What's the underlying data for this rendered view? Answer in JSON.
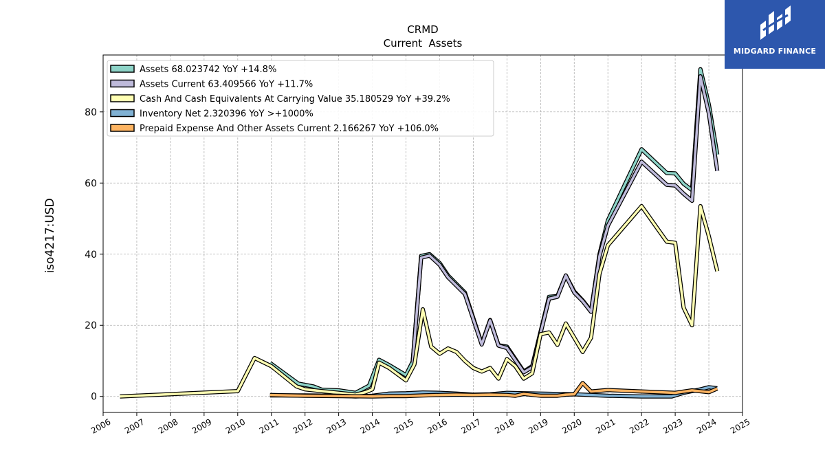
{
  "chart_data": {
    "type": "line",
    "title": "CRMD",
    "subtitle": "Current  Assets",
    "ylabel": "iso4217:USD",
    "xlabel": "",
    "xlim": [
      2006.0,
      2025.0
    ],
    "ylim": [
      -4.5,
      96.0
    ],
    "x_ticks": [
      2006,
      2007,
      2008,
      2009,
      2010,
      2011,
      2012,
      2013,
      2014,
      2015,
      2016,
      2017,
      2018,
      2019,
      2020,
      2021,
      2022,
      2023,
      2024,
      2025
    ],
    "y_ticks": [
      0,
      20,
      40,
      60,
      80
    ],
    "grid": true,
    "legend_position": "top-left",
    "series": [
      {
        "name": "Assets  68.023742 YoY +14.8%",
        "color": "#8dd3c7",
        "points": [
          [
            2010.96,
            9.4
          ],
          [
            2011.8,
            3.6
          ],
          [
            2012.25,
            2.8
          ],
          [
            2012.5,
            1.9
          ],
          [
            2013.0,
            1.7
          ],
          [
            2013.5,
            1.0
          ],
          [
            2013.9,
            3.0
          ],
          [
            2014.2,
            10.3
          ],
          [
            2014.5,
            8.8
          ],
          [
            2015.0,
            6.0
          ],
          [
            2015.2,
            9.8
          ],
          [
            2015.45,
            39.5
          ],
          [
            2015.7,
            40.0
          ],
          [
            2016.0,
            37.5
          ],
          [
            2016.25,
            34.0
          ],
          [
            2016.75,
            29.2
          ],
          [
            2017.25,
            14.8
          ],
          [
            2017.5,
            21.5
          ],
          [
            2017.75,
            14.4
          ],
          [
            2018.0,
            14.0
          ],
          [
            2018.5,
            7.0
          ],
          [
            2018.75,
            8.5
          ],
          [
            2019.25,
            28.0
          ],
          [
            2019.5,
            28.2
          ],
          [
            2019.75,
            34.0
          ],
          [
            2020.0,
            29.5
          ],
          [
            2020.25,
            27.0
          ],
          [
            2020.5,
            24.0
          ],
          [
            2020.75,
            40.0
          ],
          [
            2021.0,
            49.5
          ],
          [
            2022.0,
            69.5
          ],
          [
            2022.75,
            62.8
          ],
          [
            2023.0,
            62.7
          ],
          [
            2023.25,
            59.8
          ],
          [
            2023.5,
            58.0
          ],
          [
            2023.75,
            92.0
          ],
          [
            2024.0,
            82.0
          ],
          [
            2024.25,
            68.0
          ]
        ]
      },
      {
        "name": "Assets Current  63.409566 YoY +11.7%",
        "color": "#bebada",
        "points": [
          [
            2015.2,
            9.5
          ],
          [
            2015.45,
            39.0
          ],
          [
            2015.7,
            39.6
          ],
          [
            2016.0,
            37.0
          ],
          [
            2016.25,
            33.5
          ],
          [
            2016.75,
            28.8
          ],
          [
            2017.25,
            14.6
          ],
          [
            2017.5,
            21.4
          ],
          [
            2017.75,
            14.3
          ],
          [
            2018.0,
            13.6
          ],
          [
            2018.5,
            6.8
          ],
          [
            2018.75,
            8.2
          ],
          [
            2019.25,
            27.5
          ],
          [
            2019.5,
            28.0
          ],
          [
            2019.75,
            34.0
          ],
          [
            2020.0,
            29.2
          ],
          [
            2020.25,
            26.8
          ],
          [
            2020.5,
            23.8
          ],
          [
            2020.75,
            39.5
          ],
          [
            2021.0,
            48.0
          ],
          [
            2022.0,
            66.0
          ],
          [
            2022.75,
            59.5
          ],
          [
            2023.0,
            59.3
          ],
          [
            2023.25,
            57.0
          ],
          [
            2023.5,
            55.0
          ],
          [
            2023.75,
            90.0
          ],
          [
            2024.0,
            79.5
          ],
          [
            2024.25,
            63.4
          ]
        ]
      },
      {
        "name": "Cash And Cash Equivalents At Carrying Value  35.180529 YoY +39.2%",
        "color": "#ffffb3",
        "points": [
          [
            2006.5,
            0.0
          ],
          [
            2010.0,
            1.5
          ],
          [
            2010.5,
            10.8
          ],
          [
            2011.0,
            8.5
          ],
          [
            2011.75,
            2.8
          ],
          [
            2012.0,
            2.0
          ],
          [
            2012.5,
            1.5
          ],
          [
            2013.0,
            1.0
          ],
          [
            2013.5,
            0.5
          ],
          [
            2013.8,
            1.2
          ],
          [
            2014.0,
            2.0
          ],
          [
            2014.2,
            9.5
          ],
          [
            2014.5,
            8.0
          ],
          [
            2015.0,
            4.5
          ],
          [
            2015.25,
            9.0
          ],
          [
            2015.5,
            24.5
          ],
          [
            2015.75,
            14.0
          ],
          [
            2016.0,
            12.0
          ],
          [
            2016.25,
            13.5
          ],
          [
            2016.5,
            12.5
          ],
          [
            2016.75,
            10.0
          ],
          [
            2017.0,
            8.0
          ],
          [
            2017.25,
            7.0
          ],
          [
            2017.5,
            8.0
          ],
          [
            2017.75,
            5.0
          ],
          [
            2018.0,
            10.5
          ],
          [
            2018.25,
            8.5
          ],
          [
            2018.5,
            5.0
          ],
          [
            2018.75,
            6.5
          ],
          [
            2019.0,
            17.5
          ],
          [
            2019.25,
            18.0
          ],
          [
            2019.5,
            14.5
          ],
          [
            2019.75,
            20.5
          ],
          [
            2020.0,
            16.5
          ],
          [
            2020.25,
            12.5
          ],
          [
            2020.5,
            16.5
          ],
          [
            2020.75,
            34.5
          ],
          [
            2021.0,
            42.5
          ],
          [
            2022.0,
            53.5
          ],
          [
            2022.75,
            43.5
          ],
          [
            2023.0,
            43.2
          ],
          [
            2023.25,
            25.0
          ],
          [
            2023.5,
            20.0
          ],
          [
            2023.75,
            53.5
          ],
          [
            2024.0,
            45.0
          ],
          [
            2024.25,
            35.2
          ]
        ]
      },
      {
        "name": "Inventory Net  2.320396 YoY >+1000%",
        "color": "#80b1d3",
        "points": [
          [
            2010.96,
            0.3
          ],
          [
            2012.0,
            0.3
          ],
          [
            2013.0,
            0.2
          ],
          [
            2013.5,
            0.0
          ],
          [
            2014.0,
            0.2
          ],
          [
            2014.5,
            0.8
          ],
          [
            2015.0,
            0.9
          ],
          [
            2015.5,
            1.1
          ],
          [
            2016.0,
            1.0
          ],
          [
            2016.5,
            0.8
          ],
          [
            2017.0,
            0.5
          ],
          [
            2017.5,
            0.6
          ],
          [
            2018.0,
            1.0
          ],
          [
            2018.5,
            0.9
          ],
          [
            2019.0,
            0.8
          ],
          [
            2019.5,
            0.7
          ],
          [
            2020.0,
            0.6
          ],
          [
            2020.5,
            0.4
          ],
          [
            2021.0,
            0.2
          ],
          [
            2022.0,
            0.0
          ],
          [
            2022.9,
            0.0
          ],
          [
            2023.25,
            1.0
          ],
          [
            2023.75,
            2.0
          ],
          [
            2024.0,
            2.6
          ],
          [
            2024.25,
            2.3
          ]
        ]
      },
      {
        "name": "Prepaid Expense And Other Assets Current  2.166267 YoY +106.0%",
        "color": "#fdb462",
        "points": [
          [
            2010.96,
            0.4
          ],
          [
            2012.0,
            0.2
          ],
          [
            2013.0,
            0.1
          ],
          [
            2014.0,
            0.0
          ],
          [
            2014.5,
            0.1
          ],
          [
            2015.0,
            0.1
          ],
          [
            2015.5,
            0.3
          ],
          [
            2016.0,
            0.4
          ],
          [
            2016.5,
            0.5
          ],
          [
            2017.0,
            0.4
          ],
          [
            2017.5,
            0.5
          ],
          [
            2018.0,
            0.4
          ],
          [
            2018.25,
            0.2
          ],
          [
            2018.5,
            0.7
          ],
          [
            2019.0,
            0.2
          ],
          [
            2019.5,
            0.2
          ],
          [
            2019.75,
            0.5
          ],
          [
            2020.0,
            0.6
          ],
          [
            2020.25,
            3.8
          ],
          [
            2020.5,
            1.4
          ],
          [
            2021.0,
            1.8
          ],
          [
            2022.0,
            1.4
          ],
          [
            2023.0,
            1.0
          ],
          [
            2023.5,
            1.7
          ],
          [
            2024.0,
            1.2
          ],
          [
            2024.25,
            2.2
          ]
        ]
      }
    ]
  },
  "logo": {
    "text": "MIDGARD FINANCE",
    "background": "#2d57ad"
  }
}
